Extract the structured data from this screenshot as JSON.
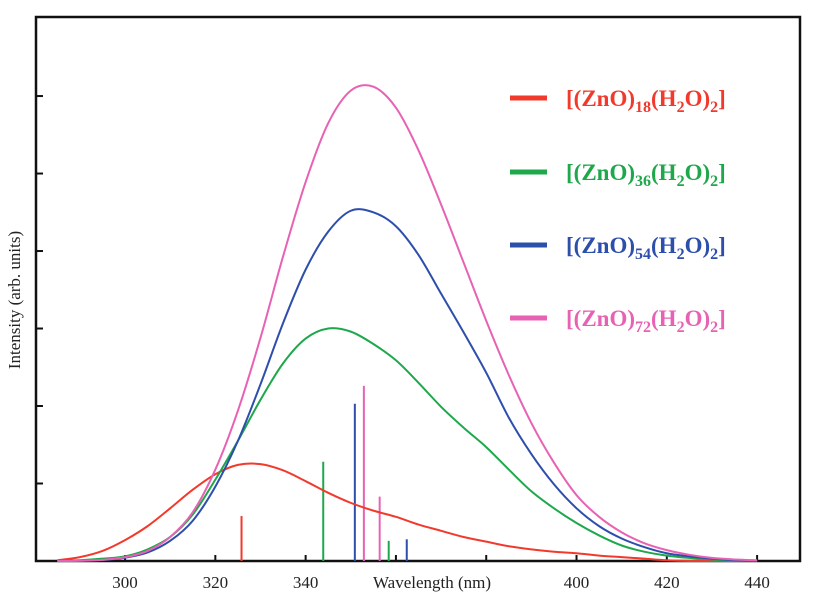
{
  "chart_data": {
    "type": "line",
    "title": "",
    "xlabel": "Wavelength (nm)",
    "ylabel": "Intensity (arb. units)",
    "xlim": [
      280.5,
      449.5
    ],
    "ylim": [
      0,
      7.02
    ],
    "x_ticks": [
      300,
      320,
      340,
      360,
      380,
      400,
      420,
      440
    ],
    "x_tick_labels": [
      "300",
      "320",
      "340",
      "",
      "",
      "400",
      "420",
      "440"
    ],
    "y_ticks": [
      1,
      2,
      3,
      4,
      5,
      6
    ],
    "y_tick_labels_shown": false,
    "grid": false,
    "legend_position": "top-right",
    "x": [
      285,
      290,
      295,
      300,
      305,
      310,
      315,
      320,
      325,
      330,
      335,
      340,
      345,
      350,
      355,
      360,
      365,
      370,
      375,
      380,
      385,
      390,
      395,
      400,
      405,
      410,
      415,
      420,
      425,
      430,
      435,
      440
    ],
    "series": [
      {
        "name": "[(ZnO)18(H2O)2]",
        "label_parts": [
          "[(ZnO)",
          "18",
          "(H",
          "2",
          "O)",
          "2",
          "]"
        ],
        "color": "#f23a2c",
        "values": [
          0.01,
          0.05,
          0.13,
          0.27,
          0.45,
          0.68,
          0.92,
          1.12,
          1.24,
          1.25,
          1.17,
          1.03,
          0.88,
          0.75,
          0.65,
          0.57,
          0.47,
          0.39,
          0.31,
          0.25,
          0.19,
          0.15,
          0.12,
          0.1,
          0.07,
          0.05,
          0.03,
          0.01,
          0,
          0,
          0,
          0
        ],
        "sticks": [
          {
            "x": 325.8,
            "y": 0.58
          }
        ]
      },
      {
        "name": "[(ZnO)36(H2O)2]",
        "label_parts": [
          "[(ZnO)",
          "36",
          "(H",
          "2",
          "O)",
          "2",
          "]"
        ],
        "color": "#1ea84b",
        "values": [
          0,
          0.01,
          0.03,
          0.06,
          0.15,
          0.31,
          0.6,
          1.05,
          1.55,
          2.08,
          2.55,
          2.87,
          3.0,
          2.96,
          2.8,
          2.59,
          2.3,
          1.99,
          1.72,
          1.47,
          1.18,
          0.9,
          0.68,
          0.49,
          0.33,
          0.2,
          0.12,
          0.07,
          0.04,
          0.02,
          0,
          0
        ],
        "sticks": [
          {
            "x": 343.9,
            "y": 1.28
          },
          {
            "x": 358.4,
            "y": 0.26
          }
        ]
      },
      {
        "name": "[(ZnO)54(H2O)2]",
        "label_parts": [
          "[(ZnO)",
          "54",
          "(H",
          "2",
          "O)",
          "2",
          "]"
        ],
        "color": "#2d4eab",
        "values": [
          0,
          0.004,
          0.013,
          0.042,
          0.11,
          0.26,
          0.52,
          0.96,
          1.55,
          2.28,
          3.07,
          3.76,
          4.25,
          4.52,
          4.5,
          4.32,
          3.95,
          3.45,
          2.95,
          2.43,
          1.85,
          1.38,
          0.99,
          0.68,
          0.45,
          0.29,
          0.18,
          0.1,
          0.06,
          0.03,
          0.01,
          0
        ],
        "sticks": [
          {
            "x": 350.9,
            "y": 2.03
          },
          {
            "x": 362.4,
            "y": 0.28
          }
        ]
      },
      {
        "name": "[(ZnO)72(H2O)2]",
        "label_parts": [
          "[(ZnO)",
          "72",
          "(H",
          "2",
          "O)",
          "2",
          "]"
        ],
        "color": "#e862b4",
        "values": [
          0,
          0.004,
          0.015,
          0.048,
          0.13,
          0.31,
          0.63,
          1.18,
          1.94,
          2.88,
          3.93,
          4.89,
          5.65,
          6.07,
          6.12,
          5.85,
          5.3,
          4.6,
          3.85,
          3.1,
          2.4,
          1.78,
          1.27,
          0.85,
          0.57,
          0.37,
          0.23,
          0.14,
          0.08,
          0.04,
          0.02,
          0.01
        ],
        "sticks": [
          {
            "x": 352.9,
            "y": 2.26
          },
          {
            "x": 356.4,
            "y": 0.83
          }
        ]
      }
    ]
  }
}
